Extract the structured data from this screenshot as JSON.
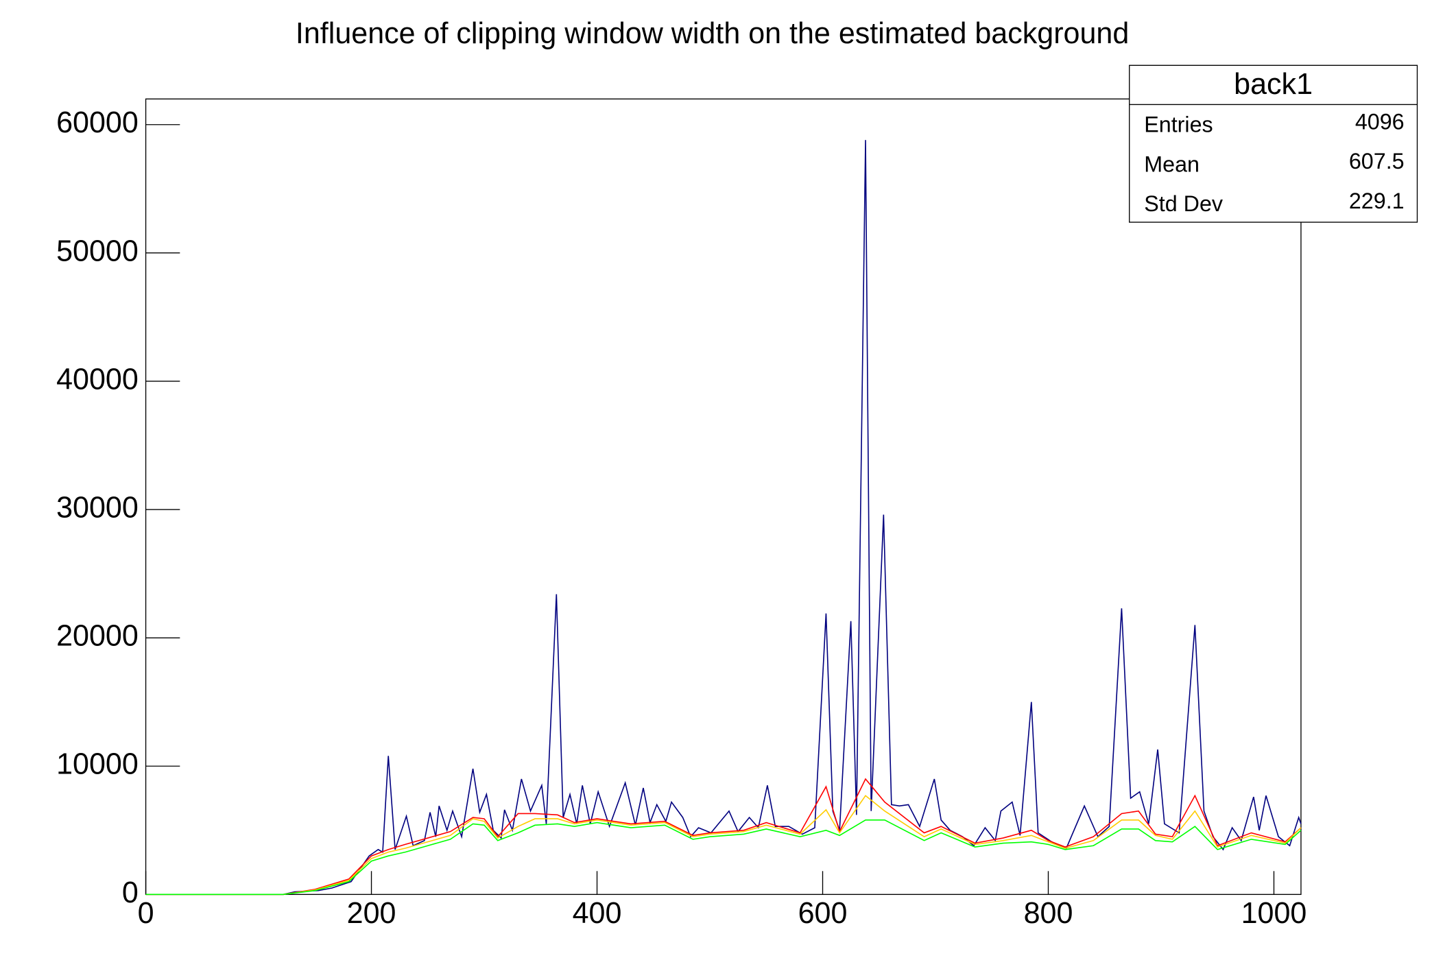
{
  "chart_data": {
    "type": "line",
    "title": "Influence of clipping window width on the estimated background",
    "xlim": [
      0,
      1024
    ],
    "ylim": [
      0,
      62000
    ],
    "xticks": [
      0,
      200,
      400,
      600,
      800,
      1000
    ],
    "yticks": [
      0,
      10000,
      20000,
      30000,
      40000,
      50000,
      60000
    ],
    "series": [
      {
        "color": "#00007f",
        "x": [
          0,
          122,
          132,
          153,
          165,
          182,
          190,
          198,
          206,
          210,
          215,
          221,
          231,
          237,
          247,
          252,
          257,
          260,
          267,
          272,
          280,
          290,
          296,
          302,
          308,
          315,
          318,
          325,
          333,
          341,
          351,
          355,
          364,
          370,
          376,
          382,
          387,
          394,
          401,
          411,
          425,
          434,
          441,
          447,
          453,
          461,
          466,
          476,
          483,
          490,
          501,
          517,
          525,
          535,
          543,
          551,
          558,
          570,
          582,
          593,
          603,
          609,
          615,
          625,
          630,
          638,
          643,
          654,
          661,
          668,
          676,
          686,
          699,
          705,
          713,
          724,
          734,
          744,
          753,
          758,
          768,
          775,
          785,
          791,
          803,
          816,
          832,
          844,
          854,
          865,
          873,
          881,
          889,
          897,
          903,
          916,
          930,
          938,
          946,
          955,
          963,
          971,
          982,
          987,
          993,
          1004,
          1014,
          1022,
          1024
        ],
        "values": [
          0,
          0,
          200,
          300,
          500,
          1000,
          2000,
          3000,
          3500,
          3300,
          10800,
          3500,
          6100,
          3800,
          4200,
          6400,
          4500,
          6900,
          5000,
          6500,
          4500,
          9800,
          6400,
          7800,
          5000,
          4400,
          6600,
          5000,
          9000,
          6500,
          8500,
          5500,
          23400,
          6000,
          7800,
          5500,
          8500,
          5500,
          8000,
          5300,
          8700,
          5400,
          8300,
          5600,
          7000,
          5700,
          7200,
          6000,
          4500,
          5200,
          4800,
          6500,
          4900,
          6000,
          5200,
          8500,
          5300,
          5300,
          4700,
          5200,
          21900,
          6500,
          5000,
          21300,
          6200,
          58800,
          6500,
          29600,
          7000,
          6900,
          7000,
          5300,
          9000,
          5800,
          5000,
          4500,
          3800,
          5200,
          4200,
          6500,
          7200,
          4600,
          15000,
          4800,
          4100,
          3600,
          6900,
          4500,
          5300,
          22300,
          7500,
          8000,
          5500,
          11300,
          5500,
          4800,
          21000,
          6500,
          4500,
          3500,
          5200,
          4200,
          7600,
          5000,
          7700,
          4500,
          3800,
          6000,
          5500
        ]
      },
      {
        "color": "#ff0000",
        "x": [
          0,
          122,
          150,
          180,
          200,
          215,
          230,
          250,
          270,
          290,
          300,
          312,
          330,
          345,
          365,
          380,
          400,
          430,
          460,
          485,
          500,
          530,
          550,
          580,
          603,
          615,
          638,
          655,
          690,
          705,
          735,
          760,
          785,
          800,
          815,
          840,
          865,
          880,
          895,
          910,
          930,
          950,
          980,
          1010,
          1024
        ],
        "values": [
          0,
          0,
          400,
          1200,
          3000,
          3500,
          3900,
          4400,
          4900,
          6000,
          5900,
          4500,
          6300,
          6300,
          6200,
          5600,
          5900,
          5500,
          5700,
          4600,
          4800,
          5000,
          5600,
          4800,
          8400,
          4900,
          9000,
          7200,
          4800,
          5300,
          4000,
          4400,
          5000,
          4200,
          3700,
          4500,
          6300,
          6500,
          4700,
          4500,
          7700,
          3800,
          4800,
          4100,
          5200
        ]
      },
      {
        "color": "#ffcc00",
        "x": [
          0,
          122,
          150,
          180,
          200,
          215,
          230,
          250,
          270,
          290,
          300,
          312,
          330,
          345,
          365,
          380,
          400,
          430,
          460,
          485,
          500,
          530,
          550,
          580,
          603,
          615,
          638,
          655,
          690,
          705,
          735,
          760,
          785,
          800,
          815,
          840,
          865,
          880,
          895,
          910,
          930,
          950,
          980,
          1010,
          1024
        ],
        "values": [
          0,
          0,
          350,
          1100,
          2800,
          3300,
          3600,
          4100,
          4600,
          5900,
          5700,
          4400,
          5300,
          5900,
          5900,
          5500,
          5800,
          5400,
          5600,
          4500,
          4700,
          4900,
          5400,
          4700,
          6600,
          4800,
          7700,
          6500,
          4500,
          5100,
          3900,
          4200,
          4600,
          4100,
          3600,
          4200,
          5800,
          5800,
          4600,
          4300,
          6500,
          3700,
          4600,
          4000,
          5200
        ]
      },
      {
        "color": "#00ff00",
        "x": [
          0,
          122,
          150,
          180,
          200,
          215,
          230,
          250,
          270,
          290,
          300,
          312,
          330,
          345,
          365,
          380,
          400,
          430,
          460,
          485,
          500,
          530,
          550,
          580,
          603,
          615,
          638,
          655,
          690,
          705,
          735,
          760,
          785,
          800,
          815,
          840,
          865,
          880,
          895,
          910,
          930,
          950,
          980,
          1010,
          1024
        ],
        "values": [
          0,
          0,
          300,
          1000,
          2600,
          3000,
          3300,
          3800,
          4300,
          5500,
          5400,
          4200,
          4800,
          5400,
          5500,
          5300,
          5600,
          5200,
          5400,
          4300,
          4500,
          4700,
          5100,
          4500,
          5000,
          4600,
          5800,
          5800,
          4200,
          4800,
          3700,
          4000,
          4100,
          3900,
          3500,
          3800,
          5100,
          5100,
          4200,
          4100,
          5300,
          3500,
          4300,
          3900,
          5000
        ]
      }
    ],
    "stats": {
      "title": "back1",
      "rows": [
        [
          "Entries",
          "4096"
        ],
        [
          "Mean",
          "607.5"
        ],
        [
          "Std Dev",
          "229.1"
        ]
      ]
    }
  }
}
